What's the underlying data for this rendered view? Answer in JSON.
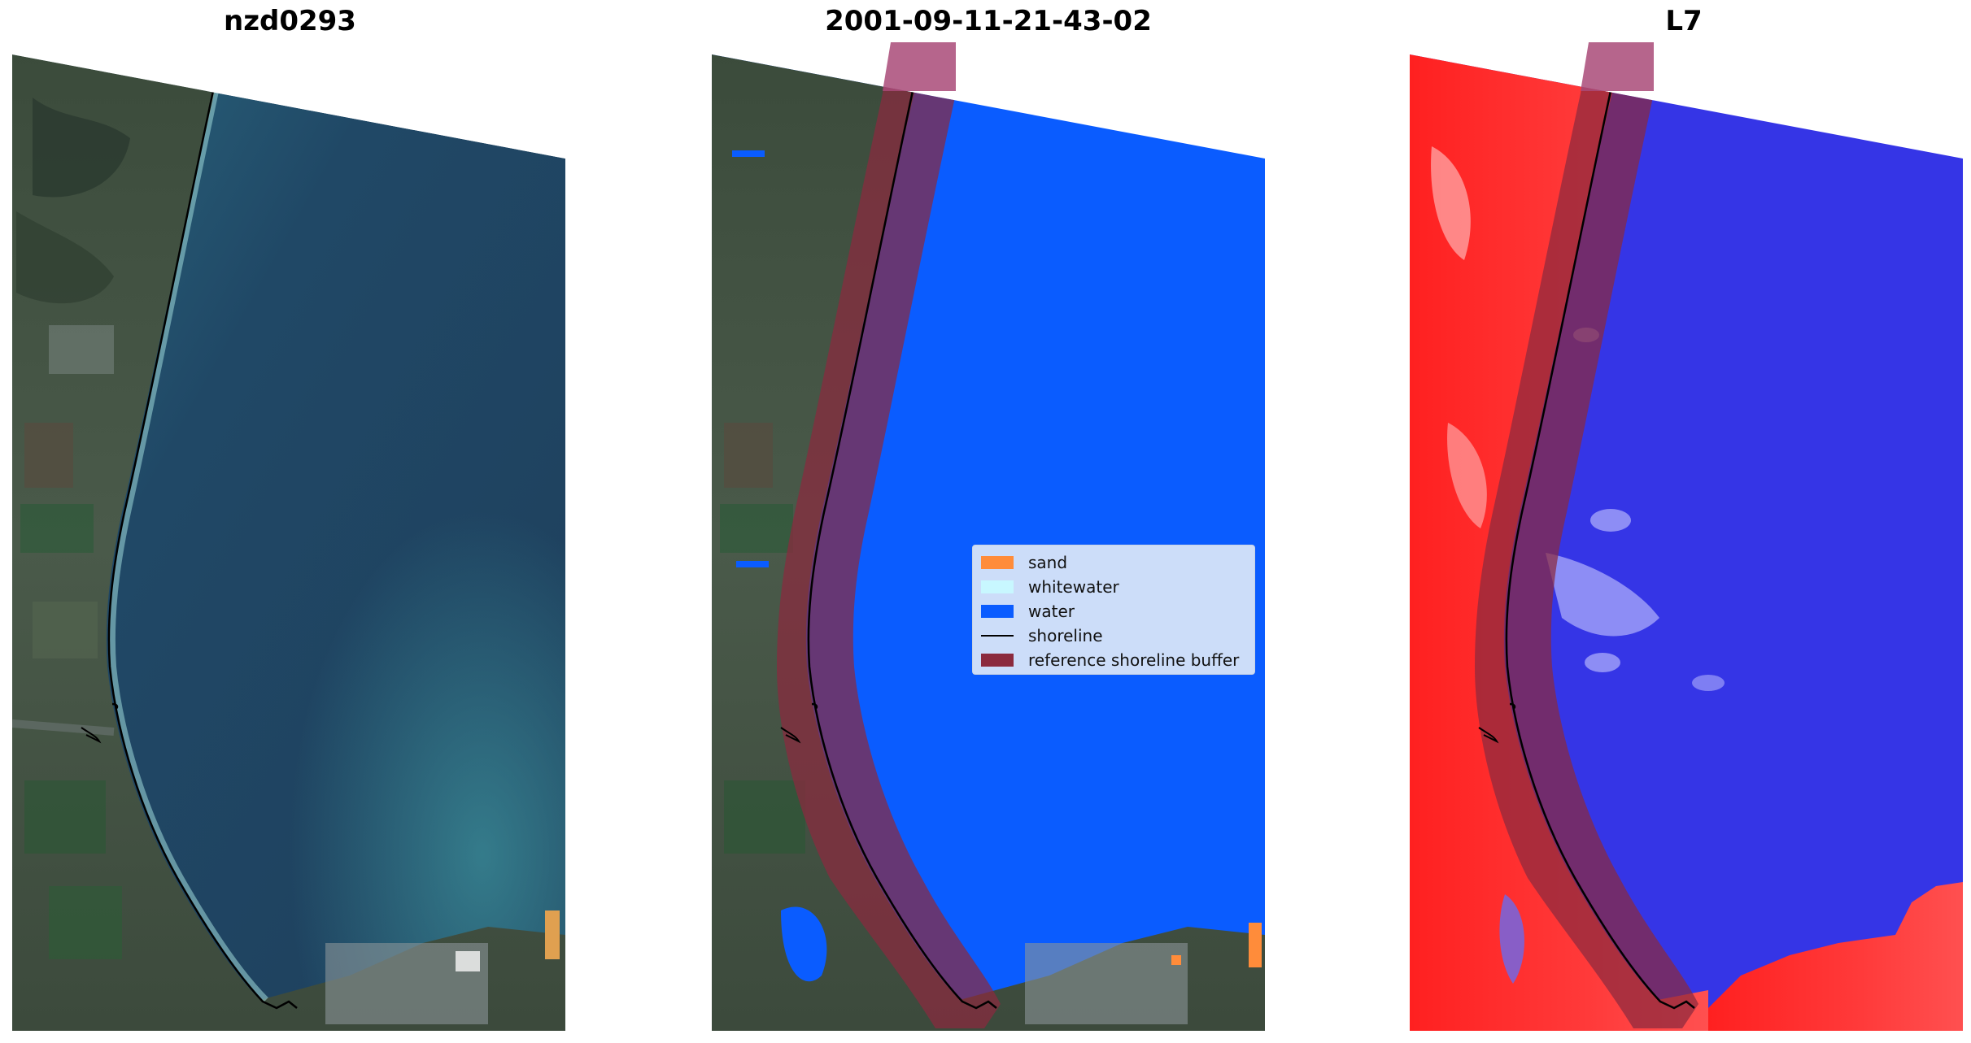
{
  "panels": [
    {
      "title": "nzd0293"
    },
    {
      "title": "2001-09-11-21-43-02"
    },
    {
      "title": "L7"
    }
  ],
  "legend": {
    "items": [
      {
        "label": "sand",
        "color": "#ff8c3a",
        "kind": "patch"
      },
      {
        "label": "whitewater",
        "color": "#c8f7ff",
        "kind": "patch"
      },
      {
        "label": "water",
        "color": "#0a5cff",
        "kind": "patch"
      },
      {
        "label": "shoreline",
        "color": "#000000",
        "kind": "line"
      },
      {
        "label": "reference shoreline buffer",
        "color": "#8b2a3e",
        "kind": "patch"
      }
    ]
  },
  "colors": {
    "land_rgb": "#3a4a3a",
    "sea_rgb": "#214a66",
    "water_class": "#0a5cff",
    "buffer": "#8b2a3e",
    "land_index": "#ff2a2a",
    "water_index": "#3a3aee"
  }
}
